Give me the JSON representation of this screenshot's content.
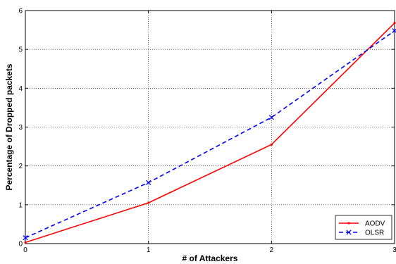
{
  "chart_data": {
    "type": "line",
    "title": "",
    "xlabel": "# of Attackers",
    "ylabel": "Percentage of Dropped packets",
    "xlim": [
      0,
      3
    ],
    "ylim": [
      0,
      6
    ],
    "xticks": [
      "0",
      "1",
      "2",
      "3"
    ],
    "yticks": [
      "0",
      "1",
      "2",
      "3",
      "4",
      "5",
      "6"
    ],
    "grid": true,
    "legend_position": "bottom-right",
    "x": [
      0,
      1,
      2,
      3
    ],
    "series": [
      {
        "name": "AODV",
        "values": [
          0.03,
          1.05,
          2.55,
          5.68
        ],
        "color": "#ff0000",
        "style": "solid",
        "marker": "point"
      },
      {
        "name": "OLSR",
        "values": [
          0.15,
          1.57,
          3.25,
          5.48
        ],
        "color": "#0000ff",
        "style": "dashed",
        "marker": "x"
      }
    ]
  }
}
